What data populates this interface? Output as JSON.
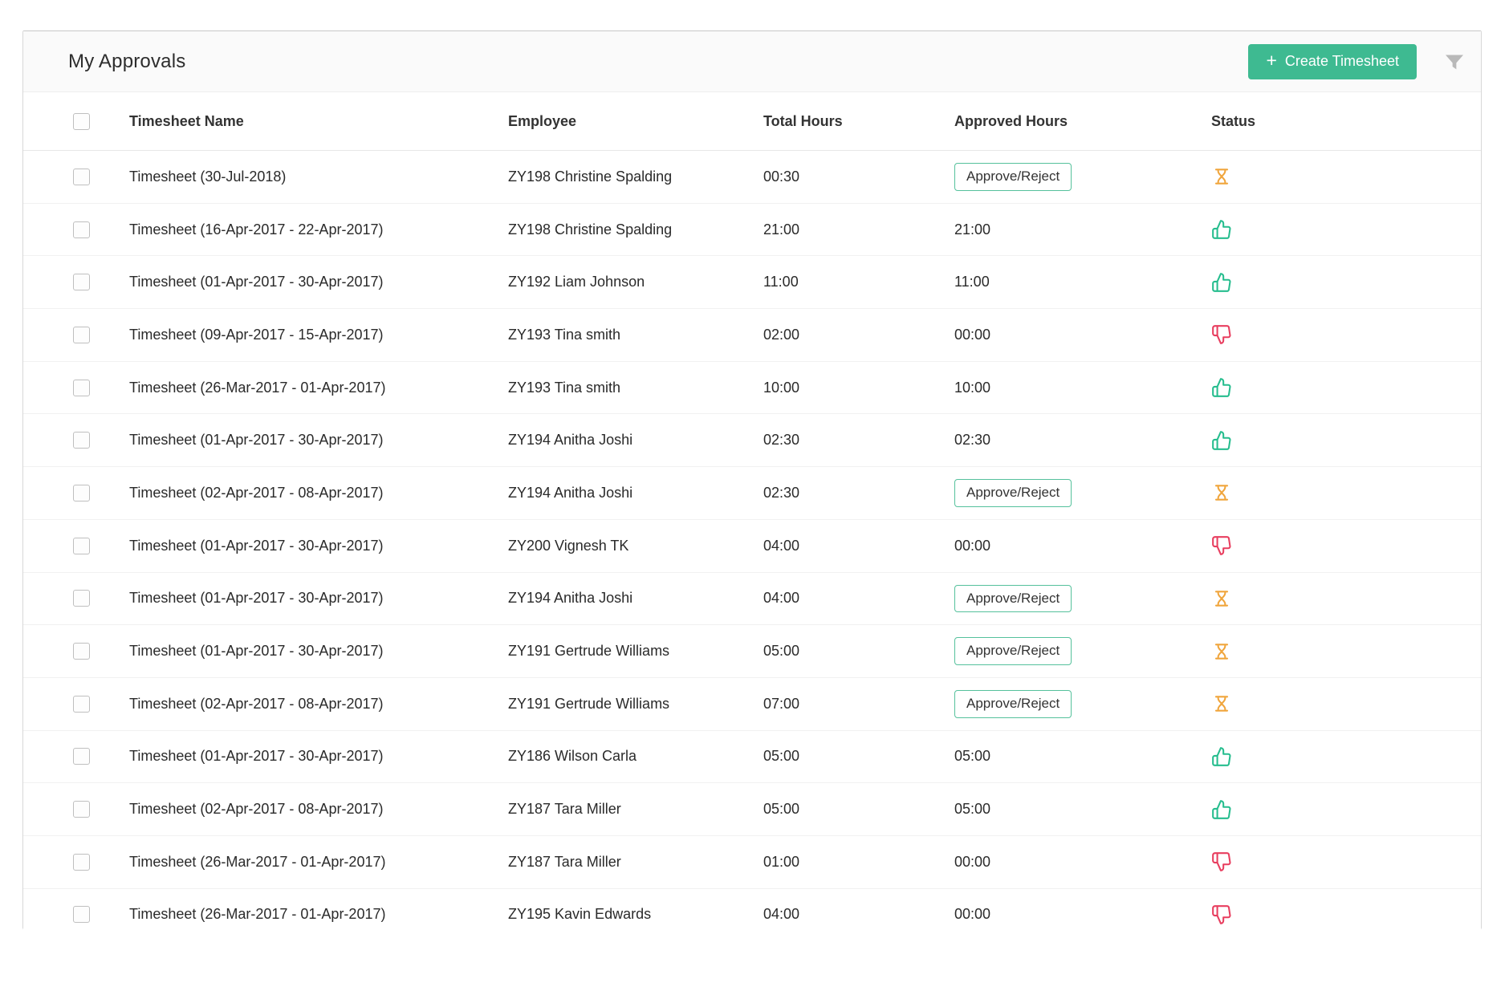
{
  "panel": {
    "title": "My Approvals",
    "create_button_label": "Create Timesheet",
    "create_button_plus": "+",
    "filter_icon": "filter-funnel-icon",
    "accent_color": "#3eba91"
  },
  "table": {
    "columns": [
      "Timesheet Name",
      "Employee",
      "Total Hours",
      "Approved Hours",
      "Status"
    ],
    "approve_reject_label": "Approve/Reject",
    "status_colors": {
      "approved": "#26bd8e",
      "rejected": "#e83e5f",
      "pending": "#f0a53c"
    },
    "rows": [
      {
        "name": "Timesheet (30-Jul-2018)",
        "employee": "ZY198 Christine Spalding",
        "total_hours": "00:30",
        "approved_hours": "",
        "status": "pending"
      },
      {
        "name": "Timesheet (16-Apr-2017 - 22-Apr-2017)",
        "employee": "ZY198 Christine Spalding",
        "total_hours": "21:00",
        "approved_hours": "21:00",
        "status": "approved"
      },
      {
        "name": "Timesheet (01-Apr-2017 - 30-Apr-2017)",
        "employee": "ZY192 Liam Johnson",
        "total_hours": "11:00",
        "approved_hours": "11:00",
        "status": "approved"
      },
      {
        "name": "Timesheet (09-Apr-2017 - 15-Apr-2017)",
        "employee": "ZY193 Tina smith",
        "total_hours": "02:00",
        "approved_hours": "00:00",
        "status": "rejected"
      },
      {
        "name": "Timesheet (26-Mar-2017 - 01-Apr-2017)",
        "employee": "ZY193 Tina smith",
        "total_hours": "10:00",
        "approved_hours": "10:00",
        "status": "approved"
      },
      {
        "name": "Timesheet (01-Apr-2017 - 30-Apr-2017)",
        "employee": "ZY194 Anitha Joshi",
        "total_hours": "02:30",
        "approved_hours": "02:30",
        "status": "approved"
      },
      {
        "name": "Timesheet (02-Apr-2017 - 08-Apr-2017)",
        "employee": "ZY194 Anitha Joshi",
        "total_hours": "02:30",
        "approved_hours": "",
        "status": "pending"
      },
      {
        "name": "Timesheet (01-Apr-2017 - 30-Apr-2017)",
        "employee": "ZY200 Vignesh TK",
        "total_hours": "04:00",
        "approved_hours": "00:00",
        "status": "rejected"
      },
      {
        "name": "Timesheet (01-Apr-2017 - 30-Apr-2017)",
        "employee": "ZY194 Anitha Joshi",
        "total_hours": "04:00",
        "approved_hours": "",
        "status": "pending"
      },
      {
        "name": "Timesheet (01-Apr-2017 - 30-Apr-2017)",
        "employee": "ZY191 Gertrude Williams",
        "total_hours": "05:00",
        "approved_hours": "",
        "status": "pending"
      },
      {
        "name": "Timesheet (02-Apr-2017 - 08-Apr-2017)",
        "employee": "ZY191 Gertrude Williams",
        "total_hours": "07:00",
        "approved_hours": "",
        "status": "pending"
      },
      {
        "name": "Timesheet (01-Apr-2017 - 30-Apr-2017)",
        "employee": "ZY186 Wilson Carla",
        "total_hours": "05:00",
        "approved_hours": "05:00",
        "status": "approved"
      },
      {
        "name": "Timesheet (02-Apr-2017 - 08-Apr-2017)",
        "employee": "ZY187 Tara Miller",
        "total_hours": "05:00",
        "approved_hours": "05:00",
        "status": "approved"
      },
      {
        "name": "Timesheet (26-Mar-2017 - 01-Apr-2017)",
        "employee": "ZY187 Tara Miller",
        "total_hours": "01:00",
        "approved_hours": "00:00",
        "status": "rejected"
      },
      {
        "name": "Timesheet (26-Mar-2017 - 01-Apr-2017)",
        "employee": "ZY195 Kavin Edwards",
        "total_hours": "04:00",
        "approved_hours": "00:00",
        "status": "rejected"
      }
    ]
  }
}
